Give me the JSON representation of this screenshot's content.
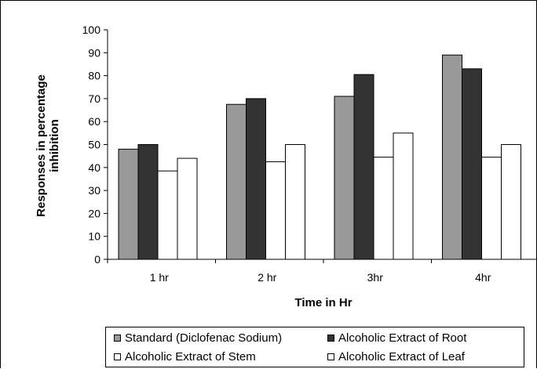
{
  "chart_data": {
    "type": "bar",
    "categories": [
      "1 hr",
      "2 hr",
      "3hr",
      "4hr"
    ],
    "series": [
      {
        "name": "Standard (Diclofenac Sodium)",
        "values": [
          48,
          67.5,
          71,
          89
        ],
        "color": "#999999"
      },
      {
        "name": "Alcoholic Extract of Root",
        "values": [
          50,
          70,
          80.5,
          83
        ],
        "color": "#333333"
      },
      {
        "name": "Alcoholic Extract of Stem",
        "values": [
          38.5,
          42.5,
          44.5,
          44.5
        ],
        "color": "#ffffff"
      },
      {
        "name": "Alcoholic Extract of Leaf",
        "values": [
          44,
          50,
          55,
          50
        ],
        "color": "#ffffff"
      }
    ],
    "title": "",
    "xlabel": "Time in Hr",
    "ylabel": "Responses in percentage inhibition",
    "ylabel_lines": [
      "Responses in percentage",
      "inhibition"
    ],
    "ylim": [
      0,
      100
    ],
    "yticks": [
      "0",
      "10",
      "20",
      "30",
      "40",
      "50",
      "60",
      "70",
      "80",
      "90",
      "100"
    ],
    "grid": false,
    "legend_position": "bottom"
  }
}
